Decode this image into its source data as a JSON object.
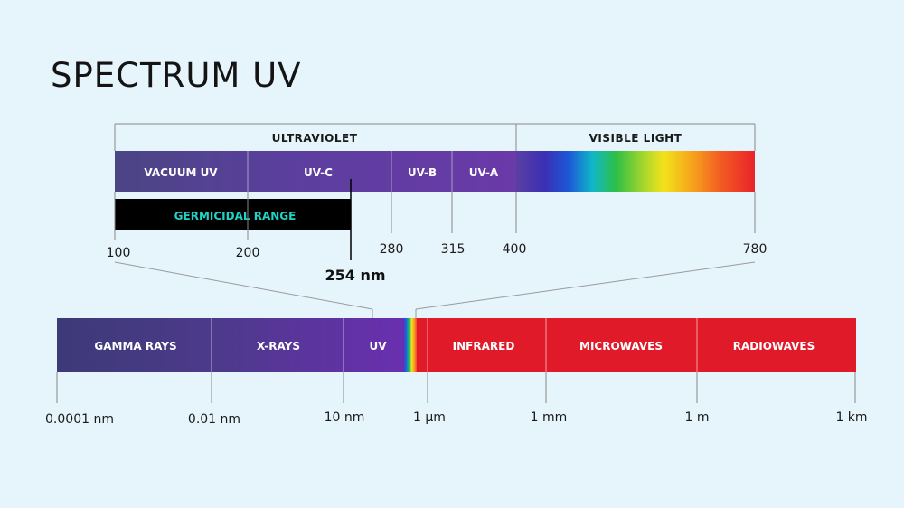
{
  "title": "SPECTRUM UV",
  "colors": {
    "background": "#e6f4fb",
    "violet_dark": "#4a3f80",
    "violet": "#5b3fa0",
    "red": "#e11a2a",
    "germicidal_bar": "#000000",
    "germicidal_text": "#1fd3c7"
  },
  "top_scale": {
    "headers": [
      "ULTRAVIOLET",
      "VISIBLE LIGHT"
    ],
    "bands": [
      "VACUUM UV",
      "UV-C",
      "UV-B",
      "UV-A"
    ],
    "ticks": [
      "100",
      "200",
      "280",
      "315",
      "400",
      "780"
    ],
    "germicidal_label": "GERMICIDAL RANGE",
    "peak_label": "254 nm"
  },
  "bottom_scale": {
    "bands": [
      "GAMMA RAYS",
      "X-RAYS",
      "UV",
      "INFRARED",
      "MICROWAVES",
      "RADIOWAVES"
    ],
    "ticks": [
      "0.0001 nm",
      "0.01 nm",
      "10 nm",
      "1 µm",
      "1 mm",
      "1 m",
      "1 km"
    ]
  }
}
